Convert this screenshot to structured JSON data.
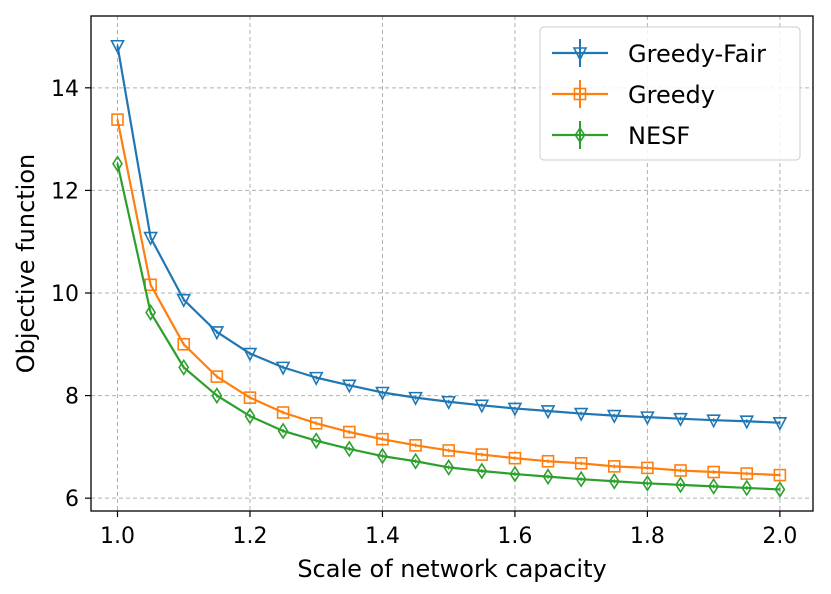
{
  "chart_data": {
    "type": "line",
    "title": "",
    "xlabel": "Scale of network capacity",
    "ylabel": "Objective function",
    "xlim": [
      0.96,
      2.05
    ],
    "ylim": [
      5.75,
      15.4
    ],
    "xticks": [
      1.0,
      1.2,
      1.4,
      1.6,
      1.8,
      2.0
    ],
    "xtick_labels": [
      "1.0",
      "1.2",
      "1.4",
      "1.6",
      "1.8",
      "2.0"
    ],
    "yticks": [
      6,
      8,
      10,
      12,
      14
    ],
    "ytick_labels": [
      "6",
      "8",
      "10",
      "12",
      "14"
    ],
    "grid": true,
    "legend_position": "top-right",
    "x": [
      1.0,
      1.05,
      1.1,
      1.15,
      1.2,
      1.25,
      1.3,
      1.35,
      1.4,
      1.45,
      1.5,
      1.55,
      1.6,
      1.65,
      1.7,
      1.75,
      1.8,
      1.85,
      1.9,
      1.95,
      2.0
    ],
    "series": [
      {
        "name": "Greedy-Fair",
        "color": "#1f77b4",
        "marker": "triangle-down",
        "values": [
          14.82,
          11.08,
          9.87,
          9.24,
          8.82,
          8.55,
          8.35,
          8.2,
          8.06,
          7.96,
          7.88,
          7.81,
          7.75,
          7.7,
          7.65,
          7.61,
          7.58,
          7.55,
          7.52,
          7.5,
          7.47
        ]
      },
      {
        "name": "Greedy",
        "color": "#ff7f0e",
        "marker": "square",
        "values": [
          13.38,
          10.16,
          9.0,
          8.37,
          7.96,
          7.67,
          7.46,
          7.29,
          7.15,
          7.03,
          6.93,
          6.85,
          6.78,
          6.72,
          6.68,
          6.62,
          6.59,
          6.54,
          6.51,
          6.48,
          6.45
        ]
      },
      {
        "name": "NESF",
        "color": "#2ca02c",
        "marker": "diamond",
        "values": [
          12.52,
          9.62,
          8.55,
          8.0,
          7.6,
          7.31,
          7.12,
          6.96,
          6.82,
          6.72,
          6.6,
          6.53,
          6.47,
          6.42,
          6.37,
          6.33,
          6.29,
          6.26,
          6.23,
          6.2,
          6.17
        ]
      }
    ]
  }
}
